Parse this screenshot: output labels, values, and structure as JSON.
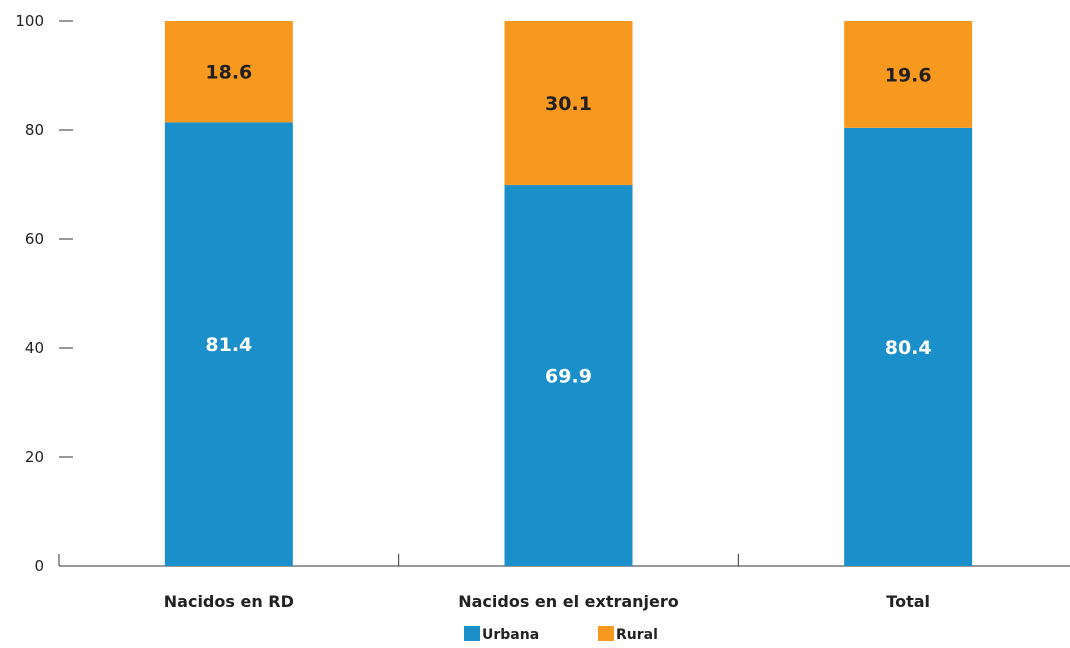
{
  "chart_data": {
    "type": "bar",
    "stacked": true,
    "categories": [
      "Nacidos en RD",
      "Nacidos en el extranjero",
      "Total"
    ],
    "series": [
      {
        "name": "Urbana",
        "values": [
          81.4,
          69.9,
          80.4
        ],
        "color": "#1a8fc9",
        "label_color": "#ffffff"
      },
      {
        "name": "Rural",
        "values": [
          18.6,
          30.1,
          19.6
        ],
        "color": "#f7991e",
        "label_color": "#231f20"
      }
    ],
    "yticks": [
      "0",
      "20",
      "40",
      "60",
      "80",
      "100"
    ],
    "ylim": [
      0,
      100
    ],
    "grid": false,
    "legend_position": "bottom-center"
  }
}
